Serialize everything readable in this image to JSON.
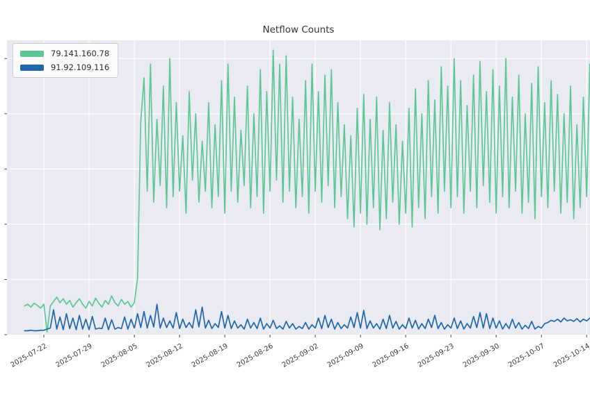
{
  "chart_data": {
    "type": "line",
    "title": "Netflow Counts",
    "xlabel": "",
    "ylabel": "",
    "grid": true,
    "legend_position": "upper left",
    "y_tick_labels_visible": false,
    "x_tick_labels": [
      "2025-07-22",
      "2025-07-29",
      "2025-08-05",
      "2025-08-12",
      "2025-08-19",
      "2025-08-26",
      "2025-09-02",
      "2025-09-09",
      "2025-09-16",
      "2025-09-23",
      "2025-09-30",
      "2025-10-07",
      "2025-10-14"
    ],
    "x_tick_days": [
      3,
      10,
      17,
      24,
      31,
      38,
      45,
      52,
      59,
      66,
      73,
      80,
      87
    ],
    "x_range_days": [
      -2.71,
      87.52
    ],
    "ylim": [
      0,
      5.33
    ],
    "y_gridline_values": [
      1,
      2,
      3,
      4,
      5
    ],
    "colors": {
      "figure_bg": "#ffffff",
      "plot_bg": "#eaeaf2",
      "grid": "#ffffff",
      "tick": "#444444",
      "tick_label": "#3d3d3d",
      "title": "#333333"
    },
    "series": [
      {
        "name": "79.141.160.78",
        "color": "#5cc795",
        "x_start_day": 0,
        "x_step_days": 0.5,
        "values": [
          0.52,
          0.55,
          0.5,
          0.57,
          0.53,
          0.48,
          0.55,
          0.05,
          0.52,
          0.6,
          0.68,
          0.58,
          0.65,
          0.55,
          0.62,
          0.5,
          0.58,
          0.65,
          0.55,
          0.48,
          0.6,
          0.52,
          0.66,
          0.57,
          0.5,
          0.62,
          0.55,
          0.7,
          0.58,
          0.52,
          0.64,
          0.55,
          0.6,
          0.5,
          0.58,
          1.02,
          3.85,
          4.65,
          2.6,
          4.9,
          2.4,
          3.9,
          2.7,
          4.5,
          2.3,
          5.0,
          2.5,
          4.2,
          2.6,
          3.6,
          2.2,
          4.4,
          2.8,
          4.0,
          2.4,
          3.5,
          2.6,
          4.2,
          2.3,
          3.8,
          2.5,
          4.6,
          2.2,
          4.9,
          2.6,
          4.3,
          2.4,
          3.7,
          2.7,
          4.5,
          2.3,
          4.0,
          2.5,
          4.8,
          2.2,
          4.4,
          2.6,
          5.15,
          2.8,
          4.9,
          2.4,
          5.05,
          2.6,
          4.3,
          2.3,
          3.9,
          2.5,
          4.6,
          2.2,
          4.9,
          2.6,
          4.4,
          2.4,
          4.7,
          2.7,
          4.8,
          2.3,
          4.2,
          2.5,
          3.8,
          2.1,
          3.6,
          1.95,
          4.1,
          2.2,
          4.35,
          2.0,
          3.9,
          2.3,
          4.3,
          1.9,
          3.7,
          2.1,
          4.2,
          2.4,
          3.8,
          2.0,
          3.5,
          2.2,
          4.1,
          1.95,
          4.45,
          2.3,
          4.0,
          2.1,
          4.6,
          2.5,
          4.25,
          2.2,
          4.85,
          2.6,
          4.5,
          2.3,
          5.0,
          2.5,
          4.6,
          2.2,
          4.15,
          2.6,
          4.7,
          2.3,
          4.95,
          2.7,
          4.4,
          2.4,
          4.8,
          2.2,
          4.5,
          2.5,
          5.0,
          2.3,
          4.3,
          2.6,
          4.7,
          2.2,
          4.0,
          2.4,
          4.55,
          2.1,
          4.85,
          2.5,
          4.2,
          2.3,
          4.6,
          2.6,
          4.35,
          2.2,
          4.0,
          2.4,
          4.5,
          2.1,
          3.8,
          2.3,
          4.3,
          2.5,
          4.9
        ]
      },
      {
        "name": "91.92.109.116",
        "color": "#1f66ad",
        "x_start_day": 0,
        "x_step_days": 0.5,
        "values": [
          0.07,
          0.07,
          0.08,
          0.07,
          0.07,
          0.08,
          0.08,
          0.1,
          0.12,
          0.45,
          0.1,
          0.32,
          0.09,
          0.38,
          0.11,
          0.3,
          0.09,
          0.35,
          0.1,
          0.28,
          0.09,
          0.33,
          0.1,
          0.12,
          0.11,
          0.3,
          0.09,
          0.27,
          0.1,
          0.13,
          0.11,
          0.32,
          0.1,
          0.28,
          0.12,
          0.38,
          0.13,
          0.42,
          0.12,
          0.35,
          0.14,
          0.55,
          0.12,
          0.3,
          0.13,
          0.25,
          0.12,
          0.4,
          0.11,
          0.28,
          0.13,
          0.22,
          0.12,
          0.45,
          0.14,
          0.5,
          0.12,
          0.26,
          0.11,
          0.2,
          0.13,
          0.42,
          0.12,
          0.35,
          0.11,
          0.25,
          0.12,
          0.18,
          0.1,
          0.28,
          0.12,
          0.22,
          0.11,
          0.3,
          0.1,
          0.2,
          0.12,
          0.26,
          0.11,
          0.16,
          0.1,
          0.24,
          0.12,
          0.2,
          0.1,
          0.15,
          0.11,
          0.22,
          0.1,
          0.18,
          0.12,
          0.3,
          0.11,
          0.35,
          0.13,
          0.28,
          0.1,
          0.22,
          0.11,
          0.18,
          0.12,
          0.32,
          0.13,
          0.4,
          0.12,
          0.44,
          0.11,
          0.25,
          0.12,
          0.2,
          0.1,
          0.28,
          0.11,
          0.35,
          0.12,
          0.24,
          0.1,
          0.18,
          0.11,
          0.3,
          0.12,
          0.26,
          0.1,
          0.2,
          0.11,
          0.28,
          0.13,
          0.35,
          0.11,
          0.22,
          0.1,
          0.18,
          0.12,
          0.3,
          0.11,
          0.25,
          0.1,
          0.2,
          0.12,
          0.33,
          0.13,
          0.4,
          0.12,
          0.38,
          0.11,
          0.3,
          0.12,
          0.25,
          0.1,
          0.2,
          0.11,
          0.28,
          0.12,
          0.22,
          0.1,
          0.17,
          0.11,
          0.24,
          0.1,
          0.15,
          0.12,
          0.2,
          0.22,
          0.26,
          0.24,
          0.28,
          0.23,
          0.3,
          0.25,
          0.27,
          0.24,
          0.29,
          0.23,
          0.28,
          0.25,
          0.3
        ]
      }
    ]
  }
}
